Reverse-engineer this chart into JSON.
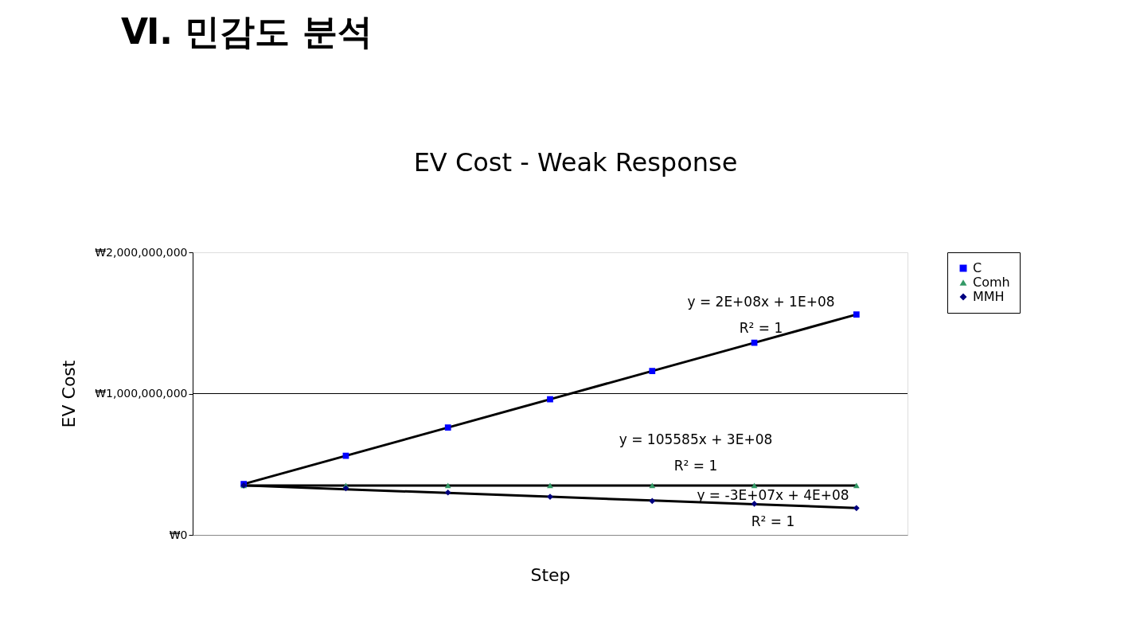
{
  "chart_data": {
    "type": "scatter",
    "title": "EV Cost - Weak Response",
    "xlabel": "Step",
    "ylabel": "EV Cost",
    "categories": [
      null,
      null,
      null,
      null,
      null,
      null,
      null
    ],
    "series": [
      {
        "name": "C",
        "color": "#0000ff",
        "marker": "square",
        "values": [
          360000000,
          560000000,
          760000000,
          960000000,
          1160000000,
          1360000000,
          1560000000
        ]
      },
      {
        "name": "Comh",
        "color": "#339966",
        "marker": "triangle",
        "values": [
          350000000,
          350000000,
          350000000,
          350000000,
          350000000,
          350000000,
          350000000
        ]
      },
      {
        "name": "MMH",
        "color": "#000080",
        "marker": "diamond",
        "values": [
          350000000,
          330000000,
          300000000,
          270000000,
          240000000,
          220000000,
          190000000
        ]
      },
      {
        "type": "line",
        "color": "#000000",
        "marker": "none",
        "values": [
          360000000,
          560000000,
          760000000,
          960000000,
          1160000000,
          1360000000,
          1560000000
        ]
      },
      {
        "type": "line",
        "color": "#000000",
        "marker": "none",
        "values": [
          350000000,
          350000000,
          350000000,
          350000000,
          350000000,
          350000000,
          350000000
        ]
      },
      {
        "type": "line",
        "color": "#000000",
        "marker": "none",
        "values": [
          350000000,
          323000000,
          297000000,
          270000000,
          243000000,
          217000000,
          190000000
        ]
      }
    ],
    "ylim": [
      0,
      2000000000
    ],
    "yticks": [
      {
        "value": 0,
        "label": "₩0"
      },
      {
        "value": 1000000000,
        "label": "₩1,000,000,000"
      },
      {
        "value": 2000000000,
        "label": "₩2,000,000,000"
      }
    ],
    "tick_labels": "y",
    "legend": "right",
    "ref_lines": [
      {
        "axis": "y",
        "value": 1000000000,
        "color": "#000000"
      }
    ],
    "annotations": [
      "Ⅵ. 민감도 분석",
      "y = 2E+08x + 1E+08",
      "R² = 1",
      "y = 105585x + 3E+08",
      "R² = 1",
      "y = -3E+07x + 4E+08",
      "R² = 1"
    ]
  }
}
